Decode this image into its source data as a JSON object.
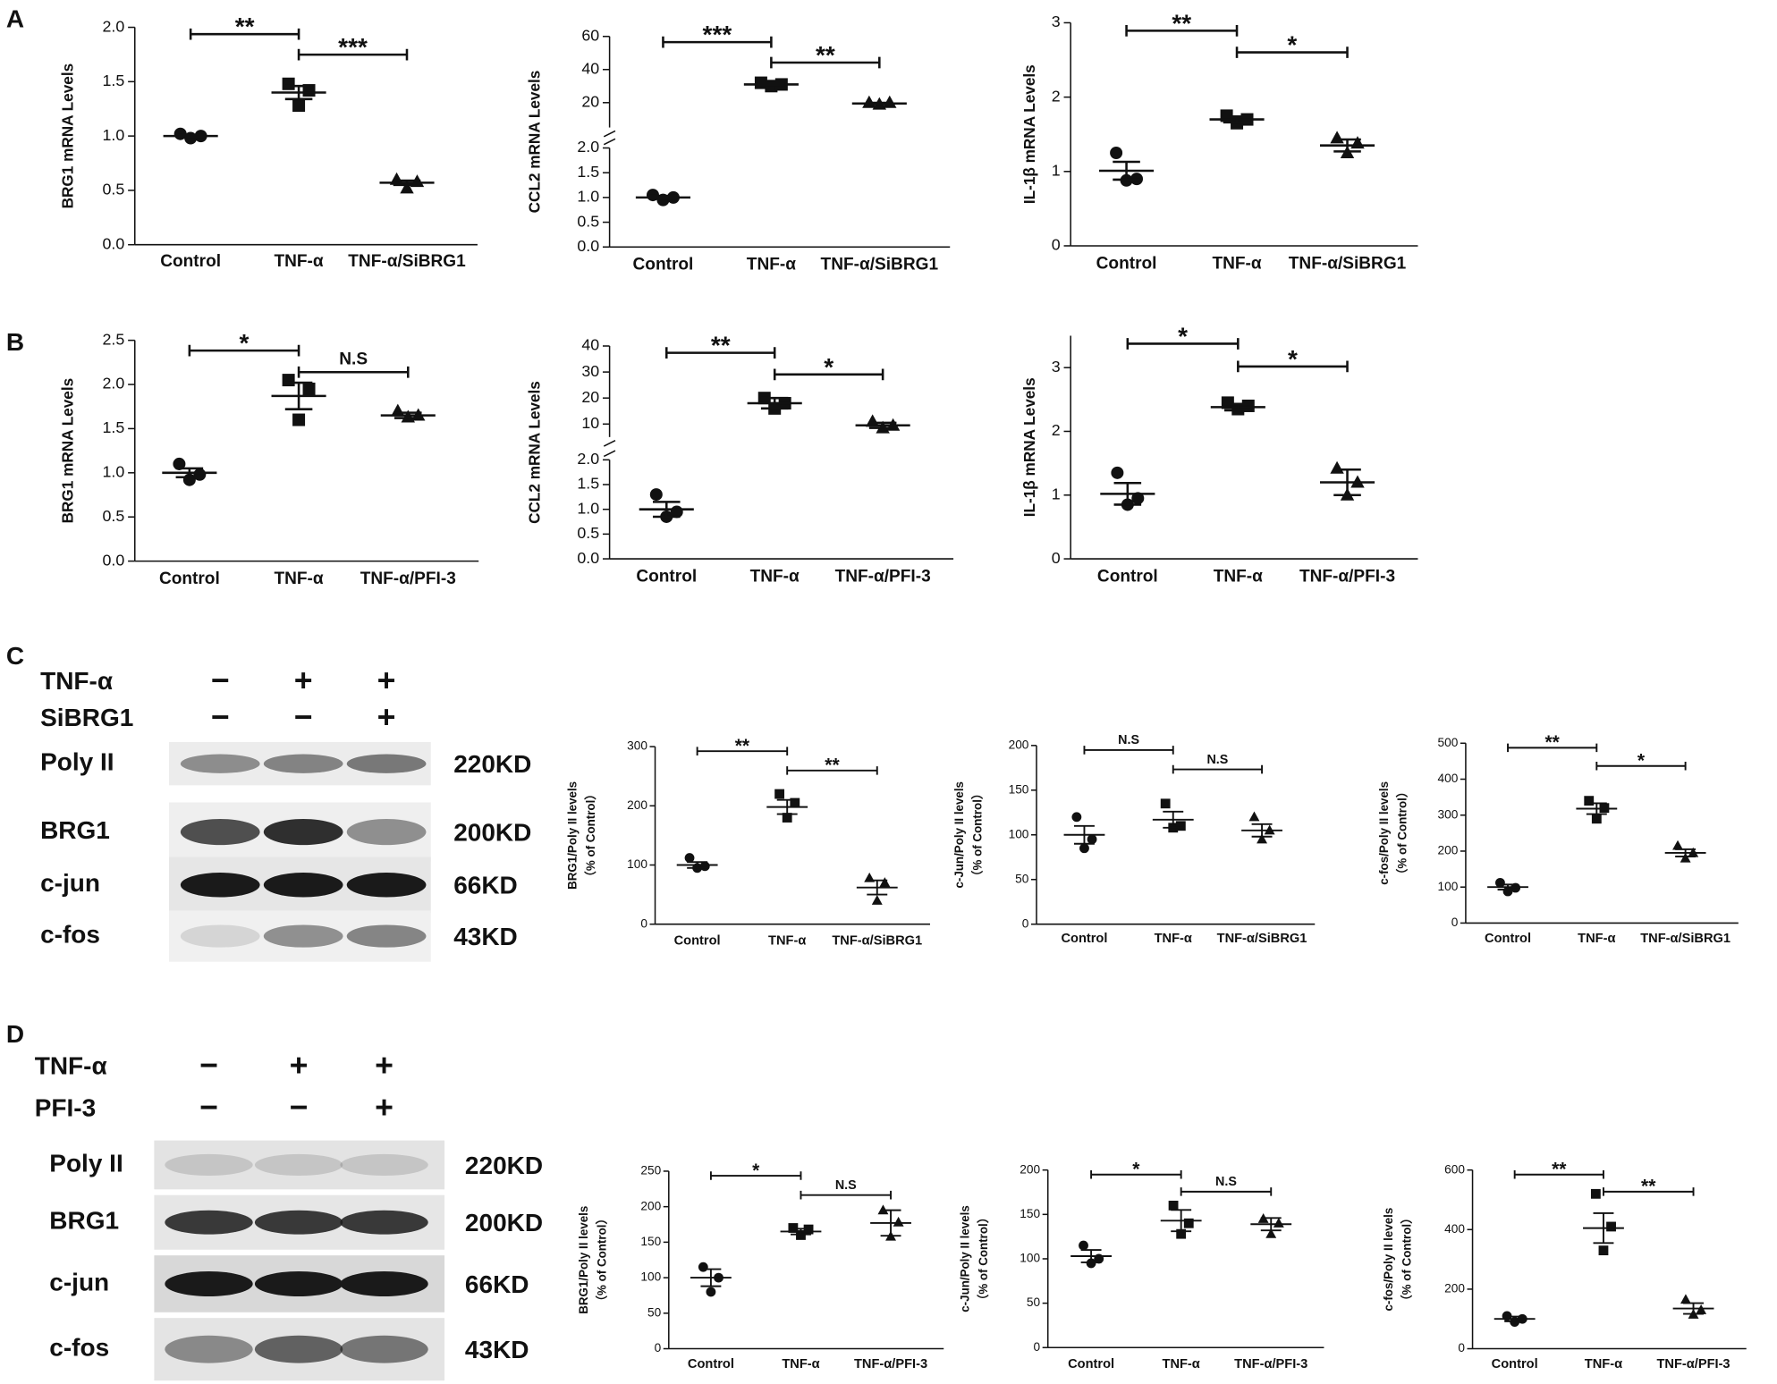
{
  "panel_labels": [
    "A",
    "B",
    "C",
    "D"
  ],
  "chart_data": [
    {
      "type": "dot",
      "ylabel": "BRG1 mRNA Levels",
      "categories": [
        "Control",
        "TNF-α",
        "TNF-α/SiBRG1"
      ],
      "markers": [
        "circle",
        "square",
        "triangle"
      ],
      "color": "#111111",
      "groups": [
        {
          "points": [
            1.02,
            0.98,
            1.0
          ],
          "mean": 1.0,
          "sem": 0.01
        },
        {
          "points": [
            1.48,
            1.28,
            1.42
          ],
          "mean": 1.4,
          "sem": 0.06
        },
        {
          "points": [
            0.6,
            0.52,
            0.58
          ],
          "mean": 0.57,
          "sem": 0.02
        }
      ],
      "ylim": [
        0,
        2
      ],
      "yticks": [
        {
          "value": 0,
          "label": "0.0"
        },
        0.5,
        {
          "value": 1,
          "label": "1.0"
        },
        1.5,
        {
          "value": 2,
          "label": "2.0"
        }
      ],
      "comparisons": [
        {
          "groups": [
            0,
            1
          ],
          "label": "**"
        },
        {
          "groups": [
            1,
            2
          ],
          "label": "***"
        }
      ]
    },
    {
      "type": "dot",
      "ylabel": "CCL2 mRNA Levels",
      "categories": [
        "Control",
        "TNF-α",
        "TNF-α/SiBRG1"
      ],
      "markers": [
        "circle",
        "square",
        "triangle"
      ],
      "color": "#111111",
      "groups": [
        {
          "points": [
            1.05,
            0.95,
            1.0
          ],
          "mean": 1.0,
          "sem": 0.03
        },
        {
          "points": [
            32,
            30,
            31
          ],
          "mean": 31,
          "sem": 0.6
        },
        {
          "points": [
            20,
            19,
            20
          ],
          "mean": 19.5,
          "sem": 0.4
        }
      ],
      "axis_segments": [
        {
          "ylim": [
            0,
            2
          ],
          "yticks": [
            {
              "value": 0,
              "label": "0.0"
            },
            0.5,
            {
              "value": 1,
              "label": "1.0"
            },
            1.5,
            {
              "value": 2,
              "label": "2.0"
            }
          ]
        },
        {
          "ylim": [
            5,
            60
          ],
          "yticks": [
            20,
            40,
            60
          ]
        }
      ],
      "comparisons": [
        {
          "groups": [
            0,
            1
          ],
          "label": "***"
        },
        {
          "groups": [
            1,
            2
          ],
          "label": "**"
        }
      ]
    },
    {
      "type": "dot",
      "ylabel": "IL-1β mRNA Levels",
      "categories": [
        "Control",
        "TNF-α",
        "TNF-α/SiBRG1"
      ],
      "markers": [
        "circle",
        "square",
        "triangle"
      ],
      "color": "#111111",
      "groups": [
        {
          "points": [
            1.25,
            0.88,
            0.9
          ],
          "mean": 1.01,
          "sem": 0.12
        },
        {
          "points": [
            1.75,
            1.65,
            1.7
          ],
          "mean": 1.7,
          "sem": 0.04
        },
        {
          "points": [
            1.45,
            1.25,
            1.38
          ],
          "mean": 1.35,
          "sem": 0.08
        }
      ],
      "ylim": [
        0,
        3
      ],
      "yticks": [
        0,
        1,
        2,
        3
      ],
      "comparisons": [
        {
          "groups": [
            0,
            1
          ],
          "label": "**"
        },
        {
          "groups": [
            1,
            2
          ],
          "label": "*"
        }
      ]
    },
    {
      "type": "dot",
      "ylabel": "BRG1 mRNA Levels",
      "categories": [
        "Control",
        "TNF-α",
        "TNF-α/PFI-3"
      ],
      "markers": [
        "circle",
        "square",
        "triangle"
      ],
      "color": "#111111",
      "groups": [
        {
          "points": [
            1.1,
            0.92,
            0.98
          ],
          "mean": 1.0,
          "sem": 0.05
        },
        {
          "points": [
            2.05,
            1.6,
            1.95
          ],
          "mean": 1.87,
          "sem": 0.15
        },
        {
          "points": [
            1.7,
            1.63,
            1.65
          ],
          "mean": 1.65,
          "sem": 0.03
        }
      ],
      "ylim": [
        0,
        2.5
      ],
      "yticks": [
        {
          "value": 0,
          "label": "0.0"
        },
        0.5,
        {
          "value": 1,
          "label": "1.0"
        },
        1.5,
        {
          "value": 2,
          "label": "2.0"
        },
        2.5
      ],
      "comparisons": [
        {
          "groups": [
            0,
            1
          ],
          "label": "*"
        },
        {
          "groups": [
            1,
            2
          ],
          "label": "N.S"
        }
      ]
    },
    {
      "type": "dot",
      "ylabel": "CCL2 mRNA Levels",
      "categories": [
        "Control",
        "TNF-α",
        "TNF-α/PFI-3"
      ],
      "markers": [
        "circle",
        "square",
        "triangle"
      ],
      "color": "#111111",
      "groups": [
        {
          "points": [
            1.3,
            0.85,
            0.95
          ],
          "mean": 1.0,
          "sem": 0.15
        },
        {
          "points": [
            20,
            16,
            18
          ],
          "mean": 18,
          "sem": 2
        },
        {
          "points": [
            11,
            8.5,
            9.5
          ],
          "mean": 9.5,
          "sem": 1
        }
      ],
      "axis_segments": [
        {
          "ylim": [
            0,
            2
          ],
          "yticks": [
            {
              "value": 0,
              "label": "0.0"
            },
            0.5,
            {
              "value": 1,
              "label": "1.0"
            },
            1.5,
            {
              "value": 2,
              "label": "2.0"
            }
          ]
        },
        {
          "ylim": [
            5,
            40
          ],
          "yticks": [
            10,
            20,
            30,
            40
          ]
        }
      ],
      "comparisons": [
        {
          "groups": [
            0,
            1
          ],
          "label": "**"
        },
        {
          "groups": [
            1,
            2
          ],
          "label": "*"
        }
      ]
    },
    {
      "type": "dot",
      "ylabel": "IL-1β mRNA Levels",
      "categories": [
        "Control",
        "TNF-α",
        "TNF-α/PFI-3"
      ],
      "markers": [
        "circle",
        "square",
        "triangle"
      ],
      "color": "#111111",
      "groups": [
        {
          "points": [
            1.35,
            0.85,
            0.95
          ],
          "mean": 1.02,
          "sem": 0.17
        },
        {
          "points": [
            2.45,
            2.35,
            2.4
          ],
          "mean": 2.38,
          "sem": 0.05
        },
        {
          "points": [
            1.42,
            1.0,
            1.2
          ],
          "mean": 1.2,
          "sem": 0.2
        }
      ],
      "ylim": [
        0,
        3.5
      ],
      "yticks": [
        0,
        1,
        2,
        3
      ],
      "comparisons": [
        {
          "groups": [
            0,
            1
          ],
          "label": "*"
        },
        {
          "groups": [
            1,
            2
          ],
          "label": "*"
        }
      ]
    },
    {
      "type": "dot",
      "ylabel": [
        "BRG1/Poly II levels",
        "（% of Control）"
      ],
      "categories": [
        "Control",
        "TNF-α",
        "TNF-α/SiBRG1"
      ],
      "markers": [
        "circle",
        "square",
        "triangle"
      ],
      "color": "#111111",
      "groups": [
        {
          "points": [
            112,
            95,
            98
          ],
          "mean": 100,
          "sem": 5
        },
        {
          "points": [
            220,
            180,
            205
          ],
          "mean": 198,
          "sem": 12
        },
        {
          "points": [
            78,
            40,
            70
          ],
          "mean": 62,
          "sem": 12
        }
      ],
      "ylim": [
        0,
        300
      ],
      "yticks": [
        0,
        100,
        200,
        300
      ],
      "comparisons": [
        {
          "groups": [
            0,
            1
          ],
          "label": "**"
        },
        {
          "groups": [
            1,
            2
          ],
          "label": "**"
        }
      ]
    },
    {
      "type": "dot",
      "ylabel": [
        "c-Jun/Poly II levels",
        "（% of Control）"
      ],
      "categories": [
        "Control",
        "TNF-α",
        "TNF-α/SiBRG1"
      ],
      "markers": [
        "circle",
        "square",
        "triangle"
      ],
      "color": "#111111",
      "groups": [
        {
          "points": [
            120,
            85,
            95
          ],
          "mean": 100,
          "sem": 10
        },
        {
          "points": [
            135,
            108,
            110
          ],
          "mean": 117,
          "sem": 9
        },
        {
          "points": [
            120,
            95,
            105
          ],
          "mean": 105,
          "sem": 7
        }
      ],
      "ylim": [
        0,
        200
      ],
      "yticks": [
        0,
        50,
        100,
        150,
        200
      ],
      "comparisons": [
        {
          "groups": [
            0,
            1
          ],
          "label": "N.S"
        },
        {
          "groups": [
            1,
            2
          ],
          "label": "N.S"
        }
      ]
    },
    {
      "type": "dot",
      "ylabel": [
        "c-fos/Poly II levels",
        "（% of Control）"
      ],
      "categories": [
        "Control",
        "TNF-α",
        "TNF-α/SiBRG1"
      ],
      "markers": [
        "circle",
        "square",
        "triangle"
      ],
      "color": "#111111",
      "groups": [
        {
          "points": [
            112,
            88,
            98
          ],
          "mean": 100,
          "sem": 7
        },
        {
          "points": [
            340,
            290,
            320
          ],
          "mean": 318,
          "sem": 15
        },
        {
          "points": [
            215,
            180,
            195
          ],
          "mean": 195,
          "sem": 10
        }
      ],
      "ylim": [
        0,
        500
      ],
      "yticks": [
        0,
        100,
        200,
        300,
        400,
        500
      ],
      "comparisons": [
        {
          "groups": [
            0,
            1
          ],
          "label": "**"
        },
        {
          "groups": [
            1,
            2
          ],
          "label": "*"
        }
      ]
    },
    {
      "type": "dot",
      "ylabel": [
        "BRG1/Poly II levels",
        "（% of Control）"
      ],
      "categories": [
        "Control",
        "TNF-α",
        "TNF-α/PFI-3"
      ],
      "markers": [
        "circle",
        "square",
        "triangle"
      ],
      "color": "#111111",
      "groups": [
        {
          "points": [
            115,
            80,
            100
          ],
          "mean": 100,
          "sem": 12
        },
        {
          "points": [
            170,
            160,
            168
          ],
          "mean": 165,
          "sem": 4
        },
        {
          "points": [
            195,
            158,
            178
          ],
          "mean": 177,
          "sem": 18
        }
      ],
      "ylim": [
        0,
        250
      ],
      "yticks": [
        0,
        50,
        100,
        150,
        200,
        250
      ],
      "comparisons": [
        {
          "groups": [
            0,
            1
          ],
          "label": "*"
        },
        {
          "groups": [
            1,
            2
          ],
          "label": "N.S"
        }
      ]
    },
    {
      "type": "dot",
      "ylabel": [
        "c-Jun/Poly II levels",
        "（% of Control）"
      ],
      "categories": [
        "Control",
        "TNF-α",
        "TNF-α/PFI-3"
      ],
      "markers": [
        "circle",
        "square",
        "triangle"
      ],
      "color": "#111111",
      "groups": [
        {
          "points": [
            115,
            95,
            100
          ],
          "mean": 103,
          "sem": 7
        },
        {
          "points": [
            160,
            128,
            140
          ],
          "mean": 143,
          "sem": 12
        },
        {
          "points": [
            145,
            128,
            140
          ],
          "mean": 139,
          "sem": 7
        }
      ],
      "ylim": [
        0,
        200
      ],
      "yticks": [
        0,
        50,
        100,
        150,
        200
      ],
      "comparisons": [
        {
          "groups": [
            0,
            1
          ],
          "label": "*"
        },
        {
          "groups": [
            1,
            2
          ],
          "label": "N.S"
        }
      ]
    },
    {
      "type": "dot",
      "ylabel": [
        "c-fos/Poly II levels",
        "（% of Control）"
      ],
      "categories": [
        "Control",
        "TNF-α",
        "TNF-α/PFI-3"
      ],
      "markers": [
        "circle",
        "square",
        "triangle"
      ],
      "color": "#111111",
      "groups": [
        {
          "points": [
            110,
            90,
            100
          ],
          "mean": 100,
          "sem": 8
        },
        {
          "points": [
            520,
            330,
            410
          ],
          "mean": 405,
          "sem": 50
        },
        {
          "points": [
            165,
            115,
            130
          ],
          "mean": 135,
          "sem": 18
        }
      ],
      "ylim": [
        0,
        600
      ],
      "yticks": [
        0,
        200,
        400,
        600
      ],
      "comparisons": [
        {
          "groups": [
            0,
            1
          ],
          "label": "**"
        },
        {
          "groups": [
            1,
            2
          ],
          "label": "**"
        }
      ]
    }
  ],
  "blots": [
    {
      "treatments": [
        {
          "name": "TNF-α",
          "signs": [
            "−",
            "+",
            "+"
          ]
        },
        {
          "name": "SiBRG1",
          "signs": [
            "−",
            "−",
            "+"
          ]
        }
      ],
      "bands": [
        {
          "name": "Poly II",
          "size": "220KD"
        },
        {
          "name": "BRG1",
          "size": "200KD"
        },
        {
          "name": "c-jun",
          "size": "66KD"
        },
        {
          "name": "c-fos",
          "size": "43KD"
        }
      ]
    },
    {
      "treatments": [
        {
          "name": "TNF-α",
          "signs": [
            "−",
            "+",
            "+"
          ]
        },
        {
          "name": "PFI-3",
          "signs": [
            "−",
            "−",
            "+"
          ]
        }
      ],
      "bands": [
        {
          "name": "Poly II",
          "size": "220KD"
        },
        {
          "name": "BRG1",
          "size": "200KD"
        },
        {
          "name": "c-jun",
          "size": "66KD"
        },
        {
          "name": "c-fos",
          "size": "43KD"
        }
      ]
    }
  ]
}
